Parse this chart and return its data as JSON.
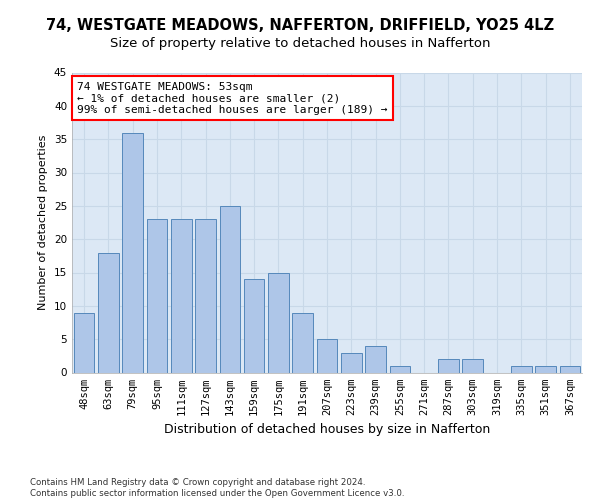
{
  "title": "74, WESTGATE MEADOWS, NAFFERTON, DRIFFIELD, YO25 4LZ",
  "subtitle": "Size of property relative to detached houses in Nafferton",
  "xlabel": "Distribution of detached houses by size in Nafferton",
  "ylabel": "Number of detached properties",
  "categories": [
    "48sqm",
    "63sqm",
    "79sqm",
    "95sqm",
    "111sqm",
    "127sqm",
    "143sqm",
    "159sqm",
    "175sqm",
    "191sqm",
    "207sqm",
    "223sqm",
    "239sqm",
    "255sqm",
    "271sqm",
    "287sqm",
    "303sqm",
    "319sqm",
    "335sqm",
    "351sqm",
    "367sqm"
  ],
  "values": [
    9,
    18,
    36,
    23,
    23,
    23,
    25,
    14,
    15,
    9,
    5,
    3,
    4,
    1,
    0,
    2,
    2,
    0,
    1,
    1,
    1
  ],
  "bar_color": "#aec6e8",
  "bar_edge_color": "#5588bb",
  "annotation_box_text": "74 WESTGATE MEADOWS: 53sqm\n← 1% of detached houses are smaller (2)\n99% of semi-detached houses are larger (189) →",
  "ylim": [
    0,
    45
  ],
  "yticks": [
    0,
    5,
    10,
    15,
    20,
    25,
    30,
    35,
    40,
    45
  ],
  "grid_color": "#c8d8e8",
  "bg_color": "#dce8f5",
  "footer_line1": "Contains HM Land Registry data © Crown copyright and database right 2024.",
  "footer_line2": "Contains public sector information licensed under the Open Government Licence v3.0.",
  "title_fontsize": 10.5,
  "subtitle_fontsize": 9.5,
  "annotation_fontsize": 8,
  "ylabel_fontsize": 8,
  "xlabel_fontsize": 9,
  "footer_fontsize": 6.2,
  "tick_fontsize": 7.5
}
